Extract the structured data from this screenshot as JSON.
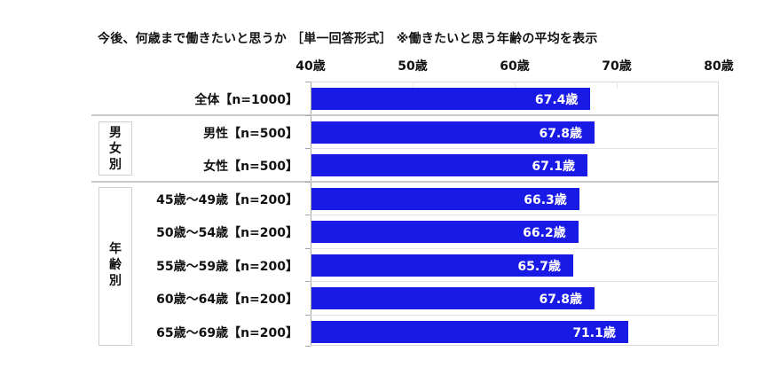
{
  "chart_data": {
    "type": "bar",
    "orientation": "horizontal",
    "title": "今後、何歳まで働きたいと思うか ［単一回答形式］ ※働きたいと思う年齢の平均を表示",
    "xlabel": "",
    "ylabel": "",
    "xlim": [
      40,
      80
    ],
    "x_ticks": [
      "40歳",
      "50歳",
      "60歳",
      "70歳",
      "80歳"
    ],
    "grid": false,
    "legend": null,
    "unit_suffix": "歳",
    "bar_color": "#1a1ae6",
    "categories": [
      "全体【n=1000】",
      "男性【n=500】",
      "女性【n=500】",
      "45歳～49歳【n=200】",
      "50歳～54歳【n=200】",
      "55歳～59歳【n=200】",
      "60歳～64歳【n=200】",
      "65歳～69歳【n=200】"
    ],
    "values": [
      67.4,
      67.8,
      67.1,
      66.3,
      66.2,
      65.7,
      67.8,
      71.1
    ],
    "value_labels": [
      "67.4歳",
      "67.8歳",
      "67.1歳",
      "66.3歳",
      "66.2歳",
      "65.7歳",
      "67.8歳",
      "71.1歳"
    ],
    "groups": [
      {
        "label": "男女別",
        "chars": [
          "男",
          "女",
          "別"
        ],
        "members": [
          "男性【n=500】",
          "女性【n=500】"
        ]
      },
      {
        "label": "年齢別",
        "chars": [
          "年",
          "齢",
          "別"
        ],
        "members": [
          "45歳～49歳【n=200】",
          "50歳～54歳【n=200】",
          "55歳～59歳【n=200】",
          "60歳～64歳【n=200】",
          "65歳～69歳【n=200】"
        ]
      }
    ]
  }
}
